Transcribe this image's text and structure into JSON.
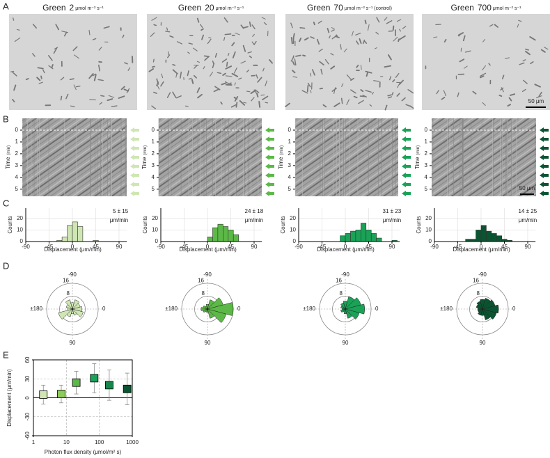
{
  "panel_labels": [
    "A",
    "B",
    "C",
    "D",
    "E"
  ],
  "conditions": [
    {
      "name": "Green",
      "intensity": 2,
      "unit": "μmol m⁻² s⁻¹",
      "color": "#cfe6b4"
    },
    {
      "name": "Green",
      "intensity": 20,
      "unit": "μmol m⁻² s⁻¹",
      "color": "#5cb947"
    },
    {
      "name": "Green",
      "intensity": 70,
      "unit": "μmol m⁻² s⁻¹ (control)",
      "color": "#1aa257"
    },
    {
      "name": "Green",
      "intensity": 700,
      "unit": "μmol m⁻² s⁻¹",
      "color": "#0b5431"
    }
  ],
  "images": {
    "scale_bar": "50 μm"
  },
  "kymographs": {
    "ylabel": "Time",
    "ylabel_unit": "(min)",
    "yticks": [
      0,
      1,
      2,
      3,
      4,
      5
    ],
    "ylim": [
      -1,
      5.6
    ],
    "scale_bar": "50 μm"
  },
  "histograms": {
    "type": "histogram",
    "ylabel": "Counts",
    "xlabel": "Displacement (μm/min)",
    "xticks": [
      -90,
      -45,
      0,
      45,
      90
    ],
    "yticks": [
      0,
      10,
      20
    ],
    "xlim": [
      -90,
      105
    ],
    "ylim": [
      0,
      29
    ],
    "grid": true,
    "bins": [
      -90,
      -80,
      -70,
      -60,
      -50,
      -40,
      -30,
      -20,
      -10,
      0,
      10,
      20,
      30,
      40,
      50,
      60,
      70,
      80,
      90,
      100
    ],
    "stat_unit": "μm/min",
    "panels": [
      {
        "stat": "5 ± 15",
        "counts": [
          0,
          0,
          0,
          0,
          0,
          0,
          1,
          4,
          14,
          17,
          13,
          0,
          0,
          1,
          0,
          0,
          0,
          0,
          0
        ]
      },
      {
        "stat": "24 ± 18",
        "counts": [
          0,
          0,
          0,
          0,
          0,
          0,
          0,
          0,
          0,
          4,
          12,
          15,
          13,
          10,
          6,
          0,
          0,
          0,
          0
        ]
      },
      {
        "stat": "31 ± 23",
        "counts": [
          0,
          0,
          0,
          0,
          0,
          0,
          0,
          0,
          5,
          7,
          9,
          10,
          16,
          10,
          7,
          3,
          0,
          0,
          1
        ]
      },
      {
        "stat": "14 ± 25",
        "counts": [
          0,
          0,
          0,
          0,
          0,
          0,
          2,
          2,
          10,
          14,
          9,
          7,
          5,
          2,
          1,
          0,
          0,
          0,
          0
        ]
      }
    ]
  },
  "roses": {
    "type": "rose",
    "rlim": 16,
    "rticks": [
      8,
      16
    ],
    "angle_labels": [
      {
        "value": -90,
        "label": "-90"
      },
      {
        "value": 180,
        "label": "±180"
      },
      {
        "value": 0,
        "label": "0"
      },
      {
        "value": 90,
        "label": "90"
      }
    ],
    "panels": [
      {
        "values": [
          6,
          7,
          4,
          3,
          5,
          9,
          3,
          4,
          6,
          4,
          6,
          5
        ]
      },
      {
        "values": [
          16,
          12,
          6,
          2,
          2,
          3,
          4,
          3,
          2,
          3,
          6,
          10
        ]
      },
      {
        "values": [
          12,
          9,
          6,
          3,
          2,
          3,
          2,
          3,
          4,
          5,
          8,
          10
        ]
      },
      {
        "values": [
          10,
          9,
          7,
          4,
          4,
          3,
          3,
          4,
          5,
          6,
          7,
          8
        ]
      }
    ]
  },
  "summary": {
    "type": "scatter",
    "xlabel": "Photon flux density (μmol/m² s)",
    "ylabel": "Displacement (μm/min)",
    "x": [
      2,
      7,
      20,
      70,
      200,
      700
    ],
    "y": [
      5,
      6,
      24,
      31,
      20,
      14
    ],
    "err": [
      15,
      14,
      18,
      23,
      24,
      25
    ],
    "colors": [
      "#cfe6b4",
      "#8ccc5c",
      "#5cb947",
      "#1aa257",
      "#17864a",
      "#0b5431"
    ],
    "log_x": true,
    "xlim": [
      1,
      1000
    ],
    "xticks": [
      1,
      10,
      100,
      1000
    ],
    "ylim": [
      -60,
      60
    ],
    "yticks": [
      60,
      30,
      0,
      -30,
      -60
    ],
    "grid": true
  }
}
